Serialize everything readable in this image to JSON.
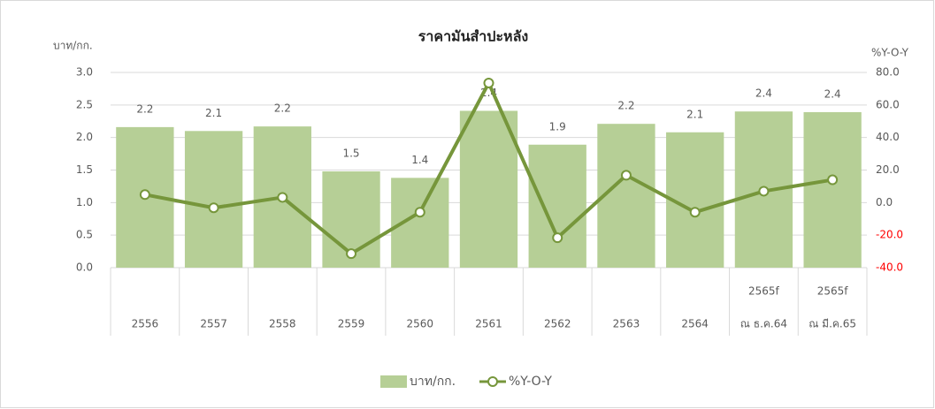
{
  "chart_data": {
    "type": "combo",
    "title": "ราคามันสำปะหลัง",
    "ylabel": "บาท/กก.",
    "y2label": "%Y-O-Y",
    "categories": [
      "2556",
      "2557",
      "2558",
      "2559",
      "2560",
      "2561",
      "2562",
      "2563",
      "2564",
      [
        "2565f",
        "ณ ธ.ค.64"
      ],
      [
        "2565f",
        "ณ มี.ค.65"
      ]
    ],
    "series": [
      {
        "name": "บาท/กก.",
        "type": "bar",
        "color": "#b6cf96",
        "values": [
          2.16,
          2.1,
          2.17,
          1.48,
          1.38,
          2.41,
          1.89,
          2.21,
          2.08,
          2.4,
          2.39
        ],
        "value_labels": [
          "2.2",
          "2.1",
          "2.2",
          "1.5",
          "1.4",
          "2.4",
          "1.9",
          "2.2",
          "2.1",
          "2.4",
          "2.4"
        ]
      },
      {
        "name": "%Y-O-Y",
        "type": "line",
        "axis": "y2",
        "color": "#76963b",
        "values": [
          4.9,
          -3.2,
          3.2,
          -31.4,
          -5.9,
          73.5,
          -21.6,
          16.8,
          -5.9,
          7,
          14
        ]
      }
    ],
    "ylim": [
      0,
      3
    ],
    "yticks": [
      {
        "value": 0,
        "label": "0.0"
      },
      0.5,
      {
        "value": 1,
        "label": "1.0"
      },
      1.5,
      {
        "value": 2,
        "label": "2.0"
      },
      2.5,
      {
        "value": 3,
        "label": "3.0"
      }
    ],
    "y2lim": [
      -40,
      80
    ],
    "y2ticks": [
      {
        "value": -40,
        "label": "-40.0"
      },
      {
        "value": -20,
        "label": "-20.0"
      },
      {
        "value": 0,
        "label": "0.0"
      },
      {
        "value": 20,
        "label": "20.0"
      },
      {
        "value": 40,
        "label": "40.0"
      },
      {
        "value": 60,
        "label": "60.0"
      },
      {
        "value": 80,
        "label": "80.0"
      }
    ],
    "negative_tick_color": "#ff0000",
    "grid": true
  }
}
